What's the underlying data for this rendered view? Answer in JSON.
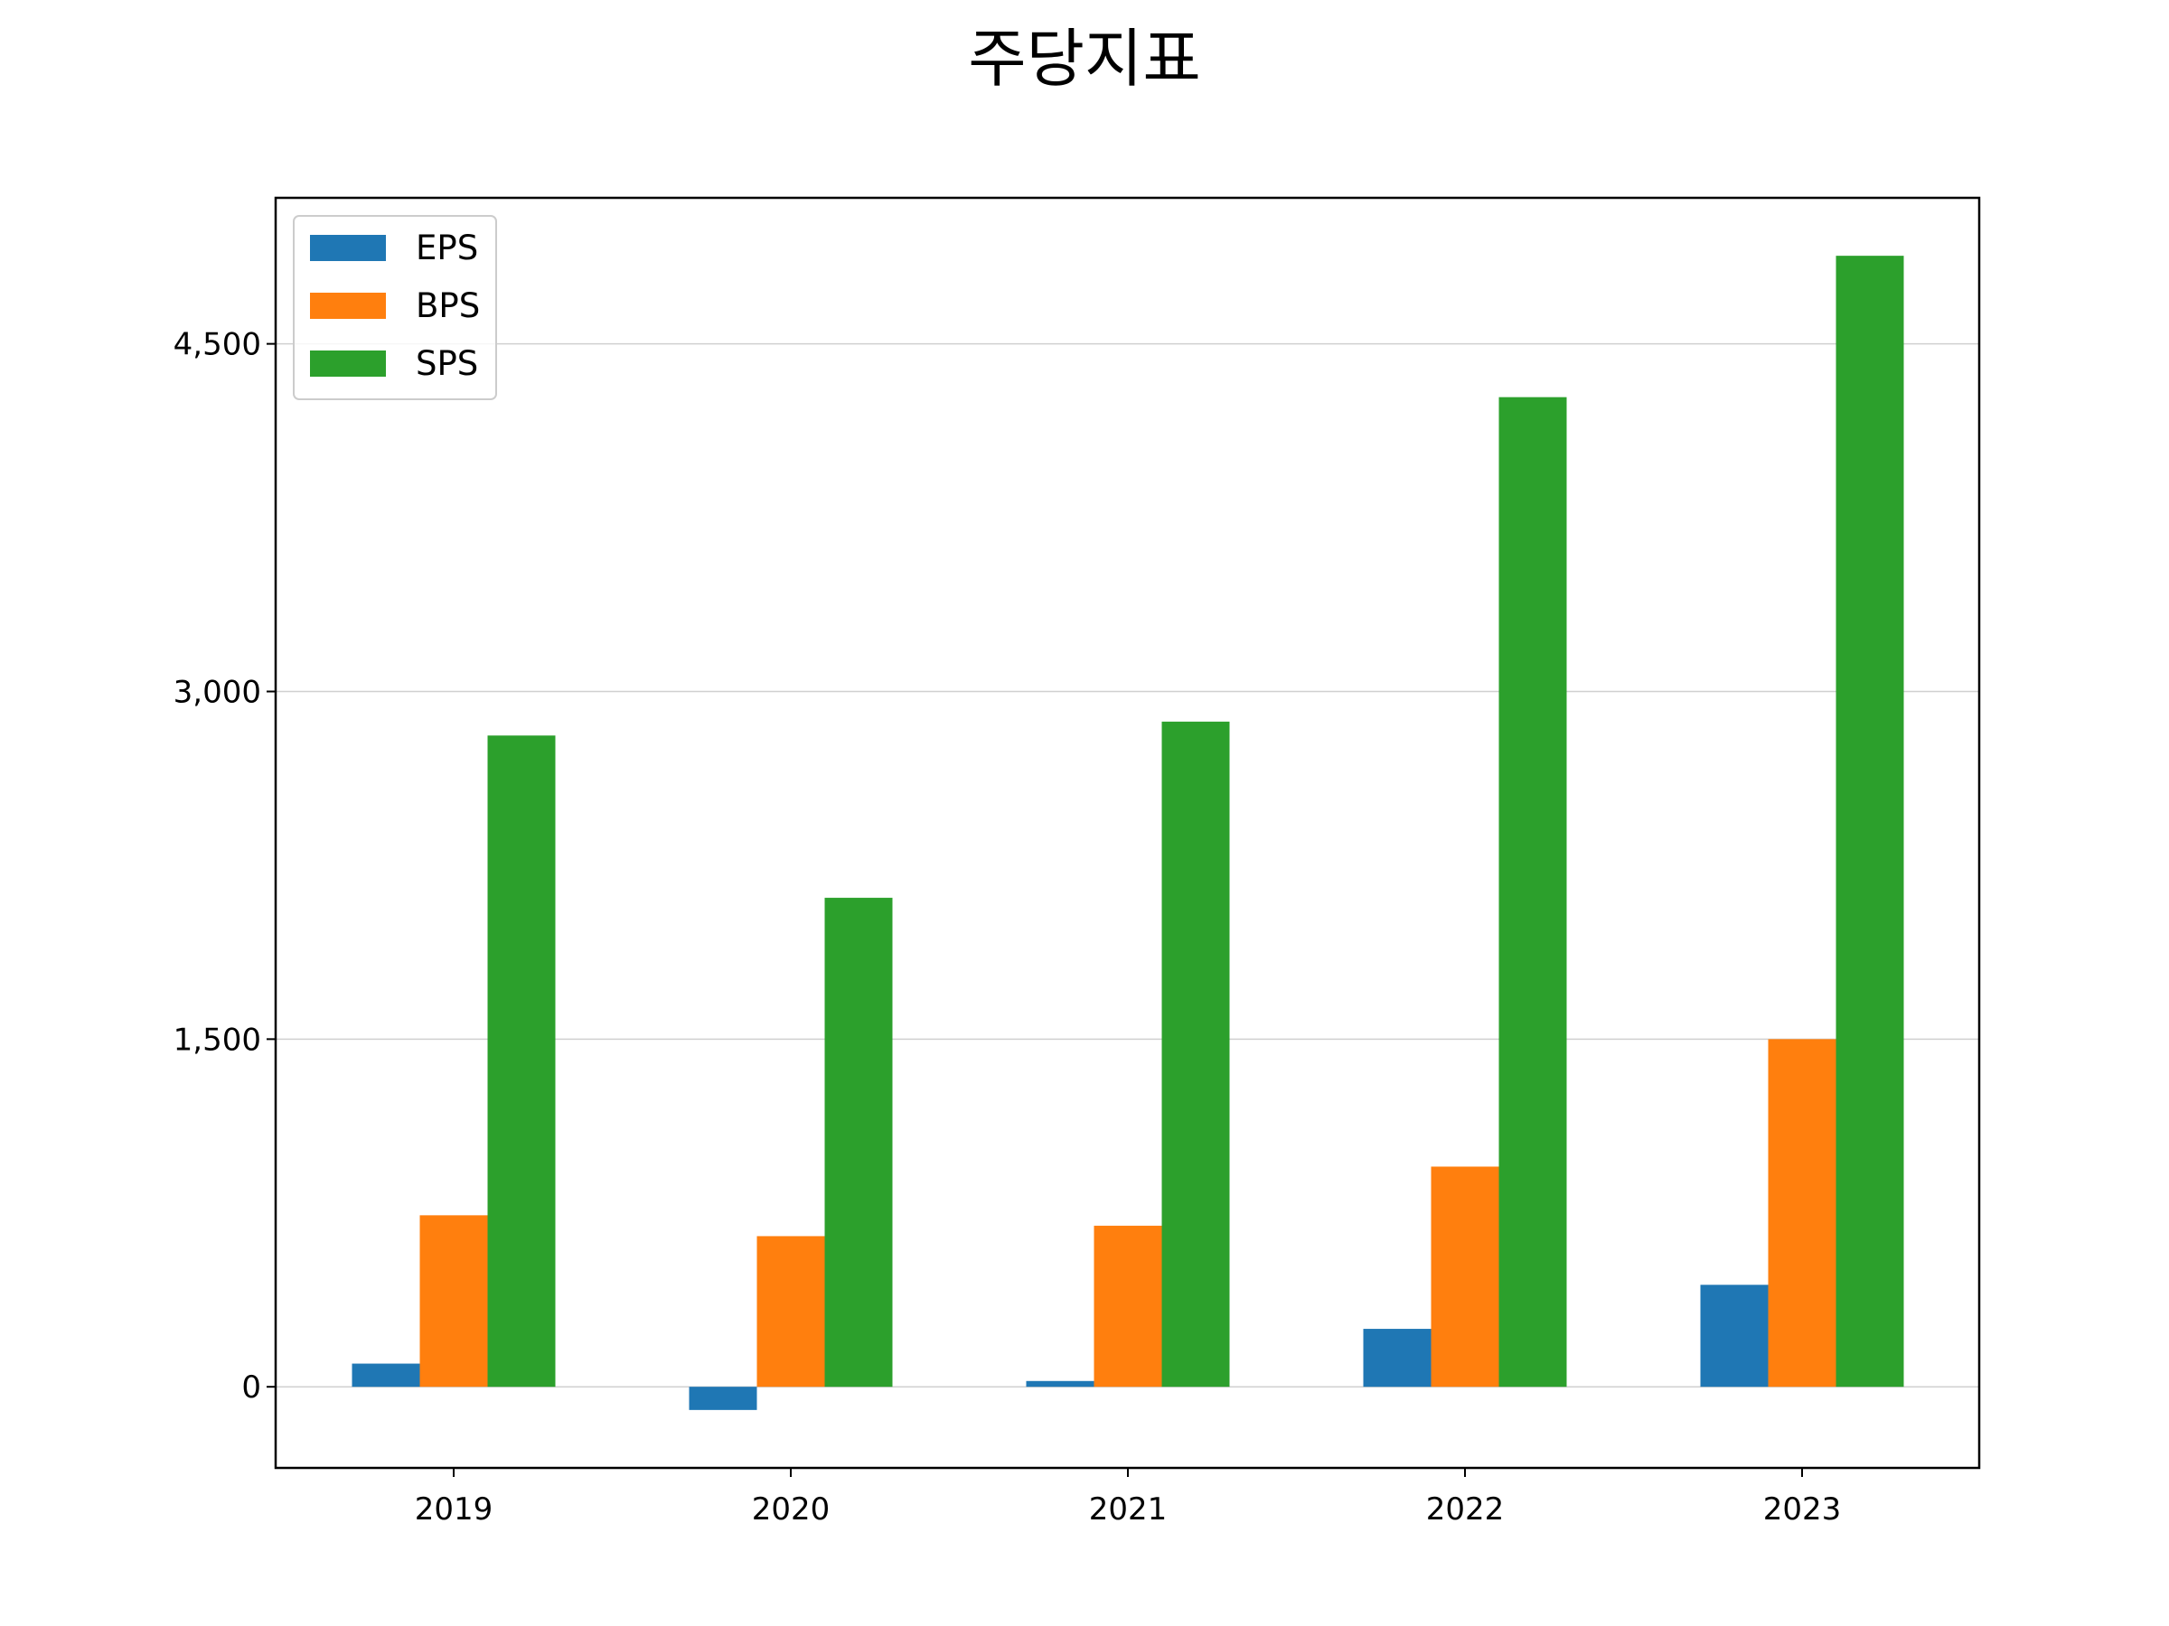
{
  "chart_data": {
    "type": "bar",
    "title": "주당지표",
    "xlabel": "",
    "ylabel": "",
    "categories": [
      "2019",
      "2020",
      "2021",
      "2022",
      "2023"
    ],
    "series": [
      {
        "name": "EPS",
        "color": "#1f77b4",
        "values": [
          100,
          -100,
          25,
          250,
          440
        ]
      },
      {
        "name": "BPS",
        "color": "#ff7f0e",
        "values": [
          740,
          650,
          695,
          950,
          1500
        ]
      },
      {
        "name": "SPS",
        "color": "#2ca02c",
        "values": [
          2810,
          2110,
          2870,
          4270,
          4880
        ]
      }
    ],
    "ylim": [
      -350,
      5130
    ],
    "yticks": [
      0,
      1500,
      3000,
      4500
    ],
    "ytick_labels": [
      "0",
      "1,500",
      "3,000",
      "4,500"
    ],
    "grid": "y",
    "legend_position": "top-left"
  }
}
